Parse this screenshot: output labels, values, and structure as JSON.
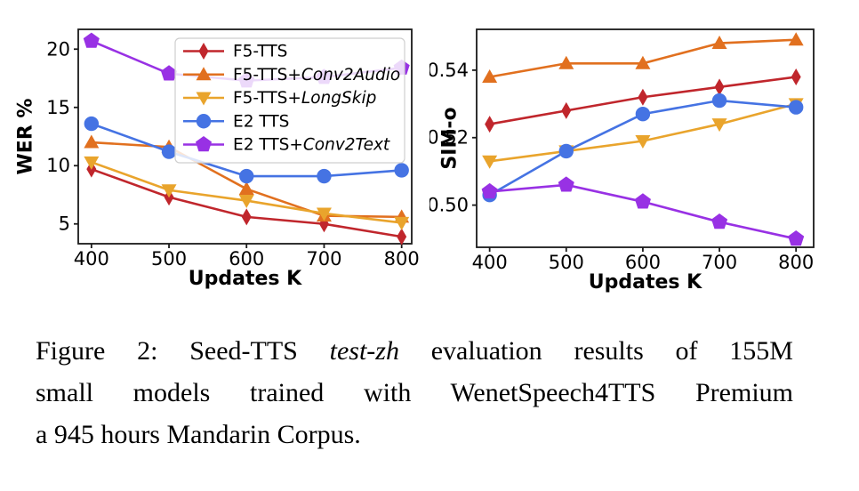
{
  "figure_label": "Figure 2:",
  "caption": {
    "lines": [
      {
        "pre": "Figure 2: Seed-TTS ",
        "italic": "test-zh",
        "post": " evaluation results of 155M"
      },
      {
        "pre": "small models trained with WenetSpeech4TTS Premium",
        "italic": "",
        "post": ""
      },
      {
        "pre": "a 945 hours Mandarin Corpus.",
        "italic": "",
        "post": ""
      }
    ]
  },
  "colors": {
    "red": "#c0262c",
    "orange": "#e1701f",
    "gold": "#e9a42c",
    "blue": "#4573e3",
    "purple": "#9831e4",
    "axis": "#1a1a1a",
    "legend_border": "#cfcfcf",
    "legend_bg": "rgba(255,255,255,0.82)"
  },
  "series_meta": [
    {
      "name": "F5-TTS",
      "label_regular": "F5-TTS",
      "label_italic": "",
      "marker": "diamond-marker",
      "color_key": "red"
    },
    {
      "name": "F5-TTS+Conv2Audio",
      "label_regular": "F5-TTS+",
      "label_italic": "Conv2Audio",
      "marker": "triangle-up-marker",
      "color_key": "orange"
    },
    {
      "name": "F5-TTS+LongSkip",
      "label_regular": "F5-TTS+",
      "label_italic": "LongSkip",
      "marker": "triangle-down-marker",
      "color_key": "gold"
    },
    {
      "name": "E2 TTS",
      "label_regular": "E2 TTS",
      "label_italic": "",
      "marker": "circle-marker",
      "color_key": "blue"
    },
    {
      "name": "E2 TTS+Conv2Text",
      "label_regular": "E2 TTS+",
      "label_italic": "Conv2Text",
      "marker": "pentagon-marker",
      "color_key": "purple"
    }
  ],
  "chart_data": [
    {
      "type": "line",
      "title": "",
      "xlabel": "Updates K",
      "ylabel": "WER %",
      "x": [
        400,
        500,
        600,
        700,
        800
      ],
      "xticks": [
        400,
        500,
        600,
        700,
        800
      ],
      "xtick_labels": [
        "400",
        "500",
        "600",
        "700",
        "800"
      ],
      "yticks": [
        5,
        10,
        15,
        20
      ],
      "ytick_labels": [
        "5",
        "10",
        "15",
        "20"
      ],
      "xlim": [
        383,
        813
      ],
      "ylim": [
        3.3,
        21.7
      ],
      "grid": false,
      "legend": true,
      "legend_position": "upper right inside",
      "series": [
        {
          "name": "F5-TTS",
          "values": [
            9.7,
            7.3,
            5.6,
            5.0,
            3.9
          ]
        },
        {
          "name": "F5-TTS+Conv2Audio",
          "values": [
            12.0,
            11.6,
            8.0,
            5.7,
            5.6
          ]
        },
        {
          "name": "F5-TTS+LongSkip",
          "values": [
            10.3,
            7.9,
            7.0,
            5.9,
            5.1
          ]
        },
        {
          "name": "E2 TTS",
          "values": [
            13.6,
            11.2,
            9.1,
            9.1,
            9.6
          ]
        },
        {
          "name": "E2 TTS+Conv2Text",
          "values": [
            20.7,
            17.9,
            17.3,
            17.6,
            18.4
          ]
        }
      ]
    },
    {
      "type": "line",
      "title": "",
      "xlabel": "Updates K",
      "ylabel": "SIM-o",
      "x": [
        400,
        500,
        600,
        700,
        800
      ],
      "xticks": [
        400,
        500,
        600,
        700,
        800
      ],
      "xtick_labels": [
        "400",
        "500",
        "600",
        "700",
        "800"
      ],
      "yticks": [
        0.5,
        0.52,
        0.54
      ],
      "ytick_labels": [
        "0.50",
        "0.52",
        "0.54"
      ],
      "xlim": [
        383,
        823
      ],
      "ylim": [
        0.4875,
        0.5521
      ],
      "grid": false,
      "legend": false,
      "legend_position": "",
      "series": [
        {
          "name": "F5-TTS",
          "values": [
            0.524,
            0.528,
            0.532,
            0.535,
            0.538
          ]
        },
        {
          "name": "F5-TTS+Conv2Audio",
          "values": [
            0.538,
            0.542,
            0.542,
            0.548,
            0.549
          ]
        },
        {
          "name": "F5-TTS+LongSkip",
          "values": [
            0.513,
            0.516,
            0.519,
            0.524,
            0.53
          ]
        },
        {
          "name": "E2 TTS",
          "values": [
            0.503,
            0.516,
            0.527,
            0.531,
            0.529
          ]
        },
        {
          "name": "E2 TTS+Conv2Text",
          "values": [
            0.504,
            0.506,
            0.501,
            0.495,
            0.49
          ]
        }
      ]
    }
  ]
}
